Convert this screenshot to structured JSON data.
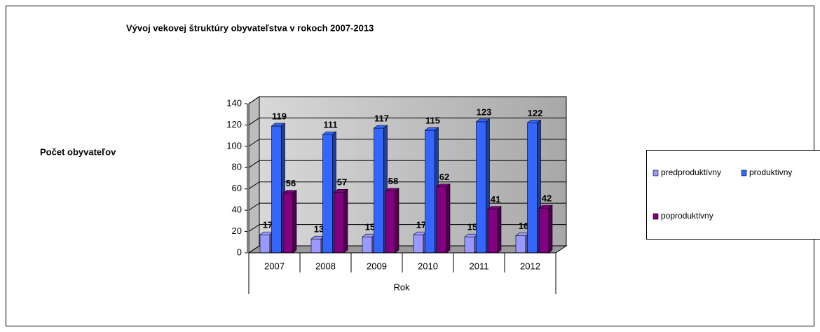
{
  "chart_data": {
    "type": "bar3d",
    "title": "Vývoj vekovej štruktúry obyvateľstva  v rokoch  2007-2013",
    "y_label": "Počet obyvateľov",
    "x_label": "Rok",
    "categories": [
      "2007",
      "2008",
      "2009",
      "2010",
      "2011",
      "2012"
    ],
    "series": [
      {
        "name": "predproduktívny",
        "color": "#9999ff",
        "values": [
          17,
          13,
          15,
          17,
          15,
          16
        ]
      },
      {
        "name": "produktivny",
        "color": "#3366ff",
        "values": [
          119,
          111,
          117,
          115,
          123,
          122
        ]
      },
      {
        "name": "poproduktivny",
        "color": "#800080",
        "values": [
          56,
          57,
          58,
          62,
          41,
          42
        ]
      }
    ],
    "ylim": [
      0,
      140
    ],
    "yticks": [
      0,
      20,
      40,
      60,
      80,
      100,
      120,
      140
    ],
    "grid": true
  }
}
